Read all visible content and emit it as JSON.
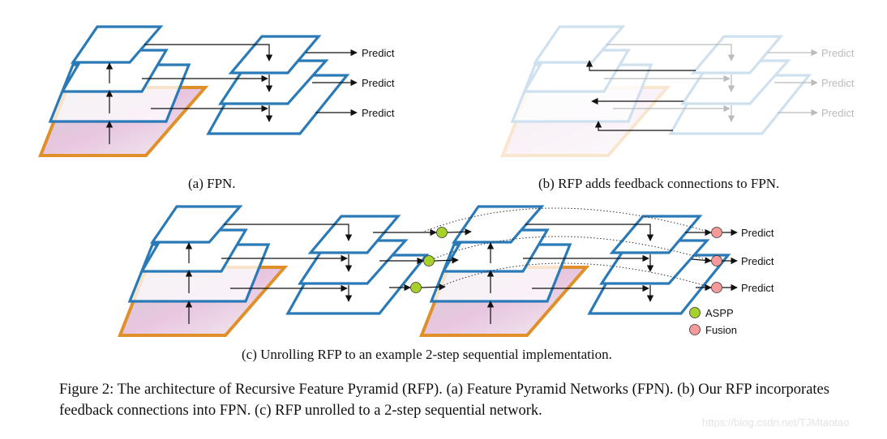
{
  "panels": {
    "a": {
      "caption": "(a) FPN.",
      "predict_labels": [
        "Predict",
        "Predict",
        "Predict"
      ]
    },
    "b": {
      "caption": "(b) RFP adds feedback connections to FPN.",
      "predict_labels": [
        "Predict",
        "Predict",
        "Predict"
      ]
    },
    "c": {
      "caption": "(c) Unrolling RFP to an example 2-step sequential implementation.",
      "predict_labels": [
        "Predict",
        "Predict",
        "Predict"
      ],
      "legend": [
        {
          "label": "ASPP",
          "color": "#a6d02a"
        },
        {
          "label": "Fusion",
          "color": "#f59a9a"
        }
      ]
    }
  },
  "figure_caption": {
    "line1": "Figure 2: The architecture of Recursive Feature Pyramid (RFP). (a) Feature Pyramid Networks (FPN). (b) Our RFP incorporates",
    "line2": "feedback connections into FPN. (c) RFP unrolled to a 2-step sequential network."
  },
  "watermark": "https://blog.csdn.net/TJMtaotao",
  "colors": {
    "plane": "#2a7ab8",
    "image_border": "#e0902a",
    "aspp": "#a6d02a",
    "fusion": "#f59a9a"
  }
}
